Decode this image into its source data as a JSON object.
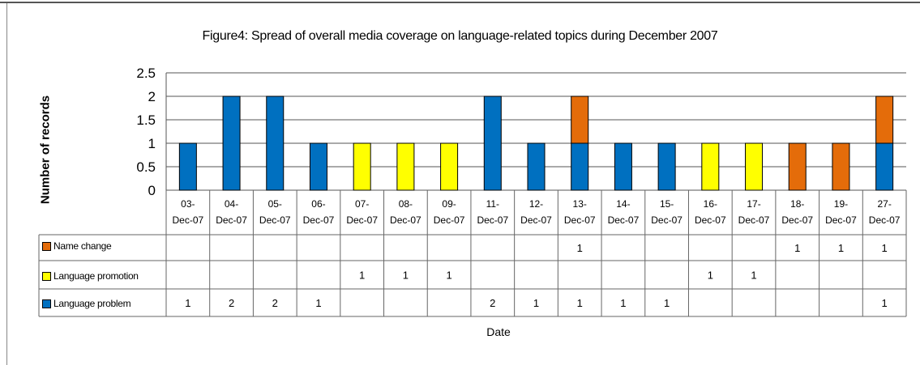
{
  "chart_data": {
    "type": "bar",
    "stacked": true,
    "title": "Figure4: Spread of overall media coverage on language-related topics during December 2007",
    "xlabel": "Date",
    "ylabel": "Number of records",
    "ylim": [
      0,
      2.5
    ],
    "yticks": [
      "2.5",
      "2",
      "1.5",
      "1",
      "0.5",
      "0"
    ],
    "grid": true,
    "legend_position": "data table rows",
    "categories": [
      "03-Dec-07",
      "04-Dec-07",
      "05-Dec-07",
      "06-Dec-07",
      "07-Dec-07",
      "08-Dec-07",
      "09-Dec-07",
      "11-Dec-07",
      "12-Dec-07",
      "13-Dec-07",
      "14-Dec-07",
      "15-Dec-07",
      "16-Dec-07",
      "17-Dec-07",
      "18-Dec-07",
      "19-Dec-07",
      "27-Dec-07"
    ],
    "series": [
      {
        "name": "Name change",
        "color": "#E46C0A",
        "values": [
          null,
          null,
          null,
          null,
          null,
          null,
          null,
          null,
          null,
          1,
          null,
          null,
          null,
          null,
          1,
          1,
          1
        ]
      },
      {
        "name": "Language promotion",
        "color": "#FFFF00",
        "values": [
          null,
          null,
          null,
          null,
          1,
          1,
          1,
          null,
          null,
          null,
          null,
          null,
          1,
          1,
          null,
          null,
          null
        ]
      },
      {
        "name": "Language problem",
        "color": "#0070C0",
        "values": [
          1,
          2,
          2,
          1,
          null,
          null,
          null,
          2,
          1,
          1,
          1,
          1,
          null,
          null,
          null,
          null,
          1
        ]
      }
    ],
    "stack_order_bottom_to_top": [
      "Language problem",
      "Language promotion",
      "Name change"
    ]
  }
}
